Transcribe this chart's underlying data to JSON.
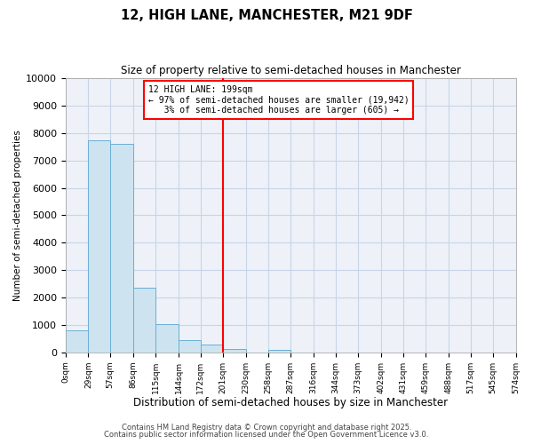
{
  "title": "12, HIGH LANE, MANCHESTER, M21 9DF",
  "subtitle": "Size of property relative to semi-detached houses in Manchester",
  "xlabel": "Distribution of semi-detached houses by size in Manchester",
  "ylabel": "Number of semi-detached properties",
  "property_label": "12 HIGH LANE: 199sqm",
  "pct_smaller": 97,
  "n_smaller": 19942,
  "pct_larger": 3,
  "n_larger": 605,
  "bin_edges": [
    0,
    29,
    57,
    86,
    115,
    144,
    172,
    201,
    230,
    258,
    287,
    316,
    344,
    373,
    402,
    431,
    459,
    488,
    517,
    545,
    574
  ],
  "bar_heights": [
    800,
    7750,
    7600,
    2350,
    1020,
    450,
    270,
    120,
    0,
    90,
    0,
    0,
    0,
    0,
    0,
    0,
    0,
    0,
    0,
    0
  ],
  "bar_face_color": "#cde4f0",
  "bar_edge_color": "#6aaed6",
  "vline_x": 201,
  "vline_color": "red",
  "ylim": [
    0,
    10000
  ],
  "yticks": [
    0,
    1000,
    2000,
    3000,
    4000,
    5000,
    6000,
    7000,
    8000,
    9000,
    10000
  ],
  "background_color": "#ffffff",
  "grid_color": "#c8d4e8",
  "ax_face_color": "#eef2f8",
  "footer_line1": "Contains HM Land Registry data © Crown copyright and database right 2025.",
  "footer_line2": "Contains public sector information licensed under the Open Government Licence v3.0."
}
